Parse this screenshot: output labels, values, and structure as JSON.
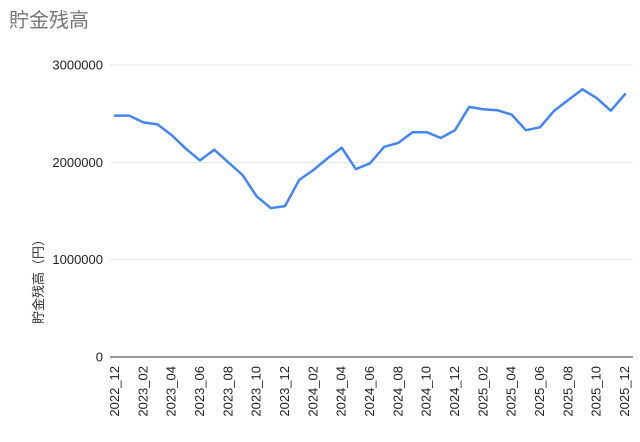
{
  "chart": {
    "title_color": "#757575"
  },
  "chart_data": {
    "type": "line",
    "title": "貯金残高",
    "xlabel": "",
    "ylabel": "貯金残高（円）",
    "legend": "none",
    "grid": true,
    "ylim": [
      0,
      3000000
    ],
    "y_ticks": [
      0,
      1000000,
      2000000,
      3000000
    ],
    "y_tick_labels": [
      "0",
      "1000000",
      "2000000",
      "3000000"
    ],
    "x_tick_labels": [
      "2022_12",
      "2023_02",
      "2023_04",
      "2023_06",
      "2023_08",
      "2023_10",
      "2023_12",
      "2024_02",
      "2024_04",
      "2024_06",
      "2024_08",
      "2024_10",
      "2024_12",
      "2025_02",
      "2025_04",
      "2025_06",
      "2025_08",
      "2025_10",
      "2025_12"
    ],
    "categories": [
      "2022_12",
      "2023_01",
      "2023_02",
      "2023_03",
      "2023_04",
      "2023_05",
      "2023_06",
      "2023_07",
      "2023_08",
      "2023_09",
      "2023_10",
      "2023_11",
      "2023_12",
      "2024_01",
      "2024_02",
      "2024_03",
      "2024_04",
      "2024_05",
      "2024_06",
      "2024_07",
      "2024_08",
      "2024_09",
      "2024_10",
      "2024_11",
      "2024_12",
      "2025_01",
      "2025_02",
      "2025_03",
      "2025_04",
      "2025_05",
      "2025_06",
      "2025_07",
      "2025_08",
      "2025_09",
      "2025_10",
      "2025_11",
      "2025_12"
    ],
    "values": [
      2480000,
      2480000,
      2410000,
      2390000,
      2280000,
      2140000,
      2020000,
      2130000,
      2000000,
      1870000,
      1650000,
      1530000,
      1550000,
      1820000,
      1920000,
      2040000,
      2150000,
      1930000,
      1990000,
      2160000,
      2200000,
      2310000,
      2310000,
      2250000,
      2330000,
      2570000,
      2545000,
      2535000,
      2490000,
      2330000,
      2360000,
      2530000,
      2640000,
      2750000,
      2660000,
      2530000,
      2700000
    ],
    "line_color": "#4285f4",
    "grid_color": "#e6e6e6",
    "axis_color": "#333333",
    "tick_color": "#222222"
  }
}
